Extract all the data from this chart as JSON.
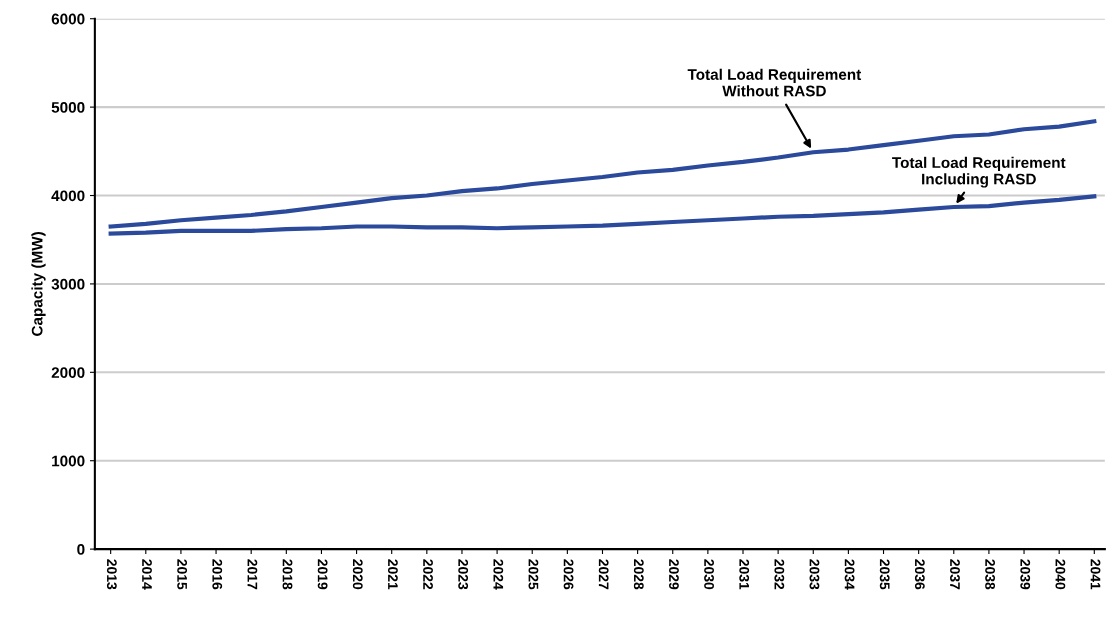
{
  "chart_data": {
    "type": "line",
    "ylabel": "Capacity (MW)",
    "categories": [
      "2013",
      "2014",
      "2015",
      "2016",
      "2017",
      "2018",
      "2019",
      "2020",
      "2021",
      "2022",
      "2023",
      "2024",
      "2025",
      "2026",
      "2027",
      "2028",
      "2029",
      "2030",
      "2031",
      "2032",
      "2033",
      "2034",
      "2035",
      "2036",
      "2037",
      "2038",
      "2039",
      "2040",
      "2041"
    ],
    "series": [
      {
        "color": "#2b4a9b",
        "values": [
          3650,
          3680,
          3720,
          3750,
          3780,
          3820,
          3870,
          3920,
          3970,
          4000,
          4050,
          4080,
          4130,
          4170,
          4210,
          4260,
          4290,
          4340,
          4380,
          4430,
          4490,
          4520,
          4570,
          4620,
          4670,
          4690,
          4750,
          4780,
          4840
        ]
      },
      {
        "color": "#2b4a9b",
        "values": [
          3570,
          3580,
          3600,
          3600,
          3600,
          3620,
          3630,
          3650,
          3650,
          3640,
          3640,
          3630,
          3640,
          3650,
          3660,
          3680,
          3700,
          3720,
          3740,
          3760,
          3770,
          3790,
          3810,
          3840,
          3870,
          3880,
          3920,
          3950,
          3990
        ]
      }
    ],
    "annotations": [
      {
        "text": "Total Load Requirement\nWithout RASD",
        "x": "2033",
        "y": 4490
      },
      {
        "text": "Total Load Requirement\nIncluding RASD",
        "x": "2037",
        "y": 3870
      }
    ],
    "ylim": [
      0,
      6000
    ],
    "yticks": [
      0,
      1000,
      2000,
      3000,
      4000,
      5000,
      6000
    ],
    "grid": "y",
    "legend": false,
    "marker": "none",
    "line_style": "solid"
  }
}
